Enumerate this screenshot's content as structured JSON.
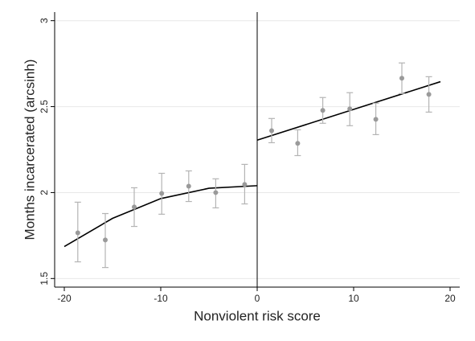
{
  "chart_data": {
    "type": "scatter",
    "x_label": "Nonviolent risk score",
    "y_label": "Months incarcerated (arcsinh)",
    "xlim": [
      -21,
      21
    ],
    "ylim": [
      1.45,
      3.05
    ],
    "xticks": [
      -20,
      -10,
      0,
      10,
      20
    ],
    "yticks": [
      1.5,
      2,
      2.5,
      3
    ],
    "grid": true,
    "cutoff": 0,
    "series": [
      {
        "color": "#9a9a9a",
        "error_color": "#b4b4b4",
        "x": [
          -18.6,
          -15.75,
          -12.75,
          -9.9,
          -7.1,
          -4.3,
          -1.3,
          1.5,
          4.2,
          6.8,
          9.6,
          12.3,
          15,
          17.8
        ],
        "values": [
          1.766,
          1.724,
          1.916,
          1.995,
          2.037,
          2.0,
          2.047,
          2.36,
          2.286,
          2.478,
          2.487,
          2.426,
          2.665,
          2.571
        ],
        "lower": [
          1.597,
          1.564,
          1.803,
          1.874,
          1.948,
          1.911,
          1.934,
          2.29,
          2.215,
          2.403,
          2.389,
          2.337,
          2.576,
          2.468
        ],
        "upper": [
          1.944,
          1.878,
          2.028,
          2.112,
          2.126,
          2.08,
          2.164,
          2.431,
          2.365,
          2.553,
          2.581,
          2.52,
          2.754,
          2.674
        ]
      }
    ],
    "fits": [
      {
        "color": "#000000",
        "x": [
          -20,
          -15,
          -10,
          -5,
          0
        ],
        "values": [
          1.686,
          1.85,
          1.965,
          2.025,
          2.04
        ]
      },
      {
        "color": "#000000",
        "x": [
          0,
          19
        ],
        "values": [
          2.305,
          2.645
        ]
      }
    ]
  }
}
